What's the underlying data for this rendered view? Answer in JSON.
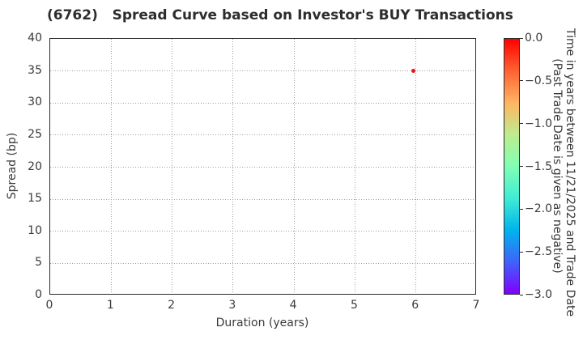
{
  "chart_data": {
    "type": "scatter",
    "title": "(6762)   Spread Curve based on Investor's BUY Transactions",
    "xlabel": "Duration (years)",
    "ylabel": "Spread (bp)",
    "xlim": [
      0,
      7
    ],
    "ylim": [
      0,
      40
    ],
    "xticks": [
      0,
      1,
      2,
      3,
      4,
      5,
      6,
      7
    ],
    "yticks": [
      0,
      5,
      10,
      15,
      20,
      25,
      30,
      35,
      40
    ],
    "grid": true,
    "grid_style": "dotted",
    "points": [
      {
        "x": 5.96,
        "y": 35.0,
        "colorbar_value": 0.0,
        "color": "#ee1111"
      }
    ],
    "colorbar": {
      "colormap": "rainbow",
      "range_top": 0.0,
      "range_bottom": -3.0,
      "ticks": [
        "0.0",
        "−0.5",
        "−1.0",
        "−1.5",
        "−2.0",
        "−2.5",
        "−3.0"
      ],
      "gradient_top_to_bottom": [
        "#ff0000",
        "#ff6232",
        "#ffb462",
        "#bfec8e",
        "#80ffb4",
        "#40ecd4",
        "#00b4ec",
        "#4062fa",
        "#8000ff"
      ],
      "label_line1": "Time in years between 11/21/2025 and Trade Date",
      "label_line2": "(Past Trade Date is given as negative)"
    },
    "colors": {
      "text": "#3a3a3a",
      "grid": "#9e9e9e",
      "spine": "#2b2b2b",
      "background": "#ffffff"
    }
  }
}
